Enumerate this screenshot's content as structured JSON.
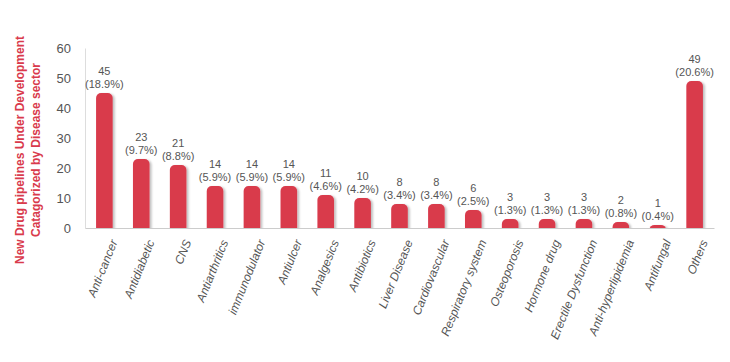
{
  "chart_data": {
    "type": "bar",
    "y_label": [
      "New Drug pipelines Under Development",
      "Catagorized by Disease sector"
    ],
    "categories": [
      "Anti-cancer",
      "Antidiabetic",
      "CNS",
      "Antiarthritics",
      "immunodulator",
      "Antiulcer",
      "Analgesics",
      "Antibiotics",
      "Liver Disease",
      "Cardiovascular",
      "Respiratory system",
      "Osteoporosis",
      "Hormone drug",
      "Erectile Dysfunction",
      "Anti-hyperlipidemia",
      "Antifungal",
      "Others"
    ],
    "values": [
      45,
      23,
      21,
      14,
      14,
      14,
      11,
      10,
      8,
      8,
      6,
      3,
      3,
      3,
      2,
      1,
      49
    ],
    "value_labels": [
      [
        "45",
        "(18.9%)"
      ],
      [
        "23",
        "(9.7%)"
      ],
      [
        "21",
        "(8.8%)"
      ],
      [
        "14",
        "(5.9%)"
      ],
      [
        "14",
        "(5.9%)"
      ],
      [
        "14",
        "(5.9%)"
      ],
      [
        "11",
        "(4.6%)"
      ],
      [
        "10",
        "(4.2%)"
      ],
      [
        "8",
        "(3.4%)"
      ],
      [
        "8",
        "(3.4%)"
      ],
      [
        "6",
        "(2.5%)"
      ],
      [
        "3",
        "(1.3%)"
      ],
      [
        "3",
        "(1.3%)"
      ],
      [
        "3",
        "(1.3%)"
      ],
      [
        "2",
        "(0.8%)"
      ],
      [
        "1",
        "(0.4%)"
      ],
      [
        "49",
        "(20.6%)"
      ]
    ],
    "color": "#d93a4c",
    "ylim": [
      0,
      60
    ],
    "yticks": [
      0,
      10,
      20,
      30,
      40,
      50,
      60
    ],
    "grid": false,
    "data_labels": true
  }
}
